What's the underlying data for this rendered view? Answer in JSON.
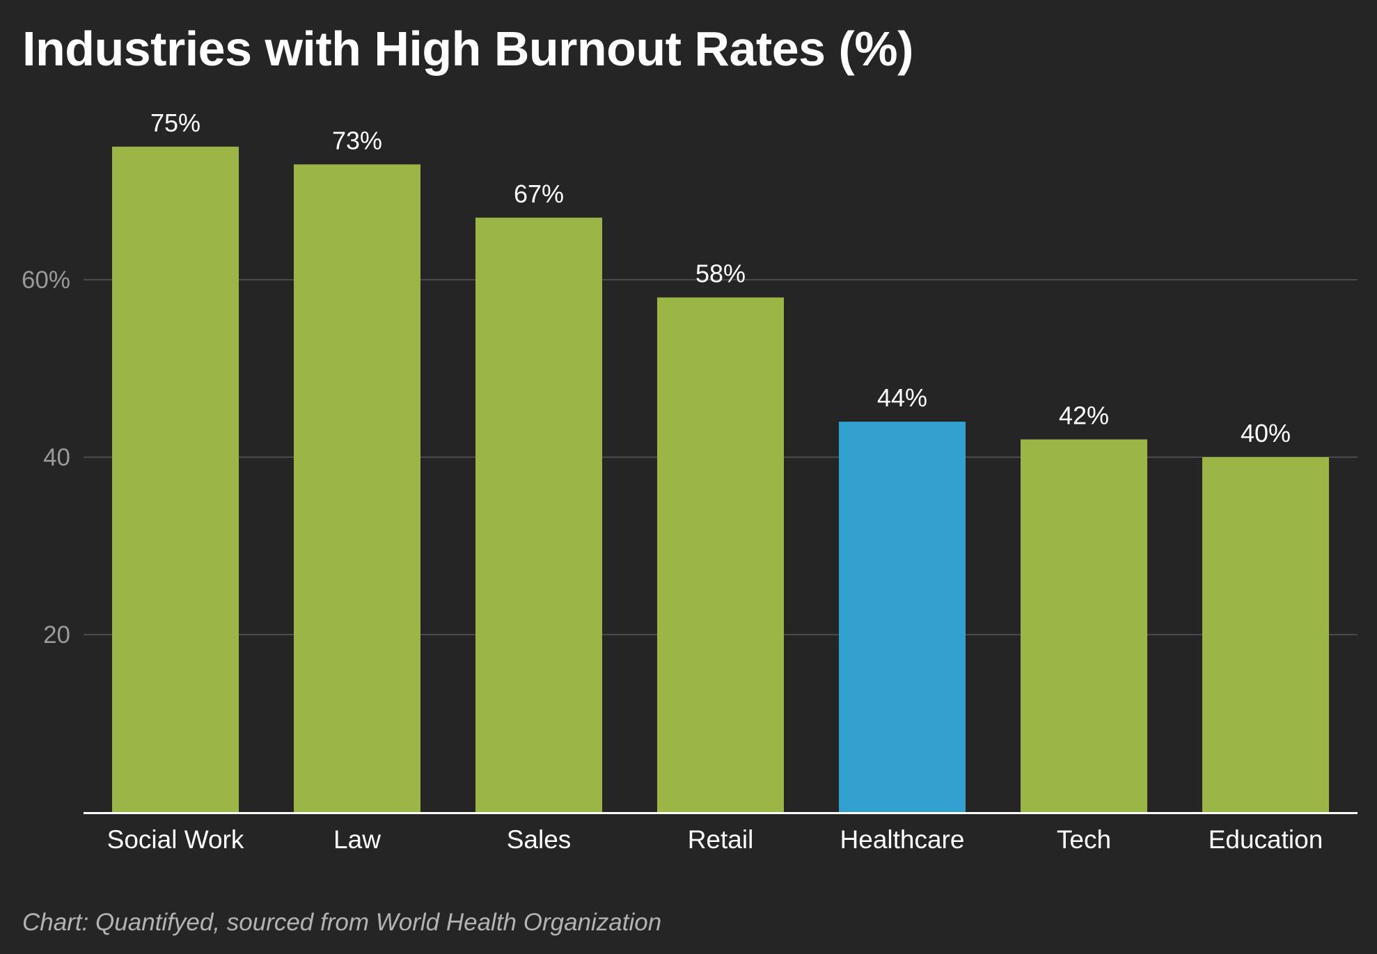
{
  "chart_data": {
    "type": "bar",
    "title": "Industries with High Burnout Rates (%)",
    "categories": [
      "Social Work",
      "Law",
      "Sales",
      "Retail",
      "Healthcare",
      "Tech",
      "Education"
    ],
    "values": [
      75,
      73,
      67,
      58,
      44,
      42,
      40
    ],
    "value_labels": [
      "75%",
      "73%",
      "67%",
      "58%",
      "44%",
      "42%",
      "40%"
    ],
    "y_ticks": [
      {
        "value": 20,
        "label": "20"
      },
      {
        "value": 40,
        "label": "40"
      },
      {
        "value": 60,
        "label": "60%"
      }
    ],
    "ylim": [
      0,
      80
    ],
    "grid": true,
    "highlight_category": "Healthcare",
    "colors": {
      "bar": "#9bb547",
      "highlight": "#33a1d0",
      "background": "#252525",
      "text": "#ffffff",
      "tick_text": "#9a9a9a",
      "grid": "#4a4a4a",
      "axis": "#ffffff"
    },
    "caption": "Chart: Quantifyed, sourced from World Health Organization"
  }
}
